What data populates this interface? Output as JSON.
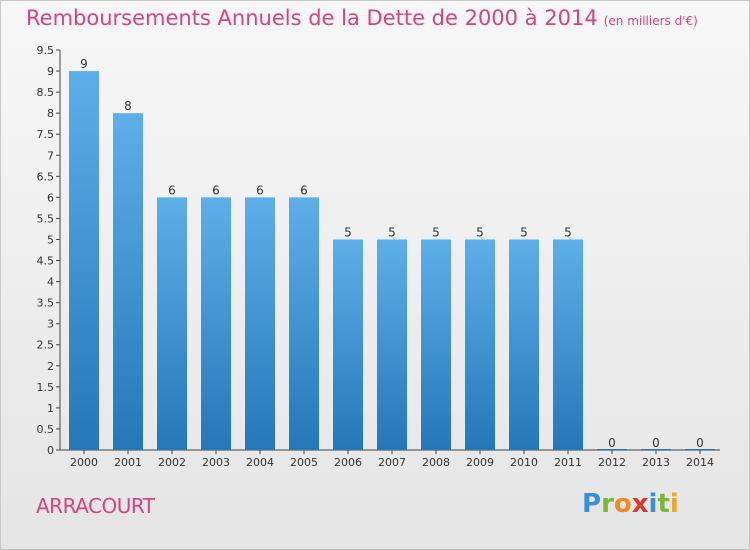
{
  "title": "Remboursements Annuels de la Dette de 2000 à 2014",
  "unit_label": "(en milliers d'€)",
  "commune": "ARRACOURT",
  "logo": [
    "P",
    "r",
    "o",
    "x",
    "i",
    "t",
    "i"
  ],
  "colors": {
    "title": "#d2457e",
    "bar_top": "#5eaeea",
    "bar_bottom": "#2577b8",
    "logo": [
      "#3a8fd6",
      "#7cb63a",
      "#f08a24",
      "#d93a2b",
      "#3a8fd6",
      "#7cb63a",
      "#f0a824"
    ]
  },
  "chart_data": {
    "type": "bar",
    "categories": [
      "2000",
      "2001",
      "2002",
      "2003",
      "2004",
      "2005",
      "2006",
      "2007",
      "2008",
      "2009",
      "2010",
      "2011",
      "2012",
      "2013",
      "2014"
    ],
    "values": [
      9,
      8,
      6,
      6,
      6,
      6,
      5,
      5,
      5,
      5,
      5,
      5,
      0,
      0,
      0
    ],
    "data_labels": [
      "9",
      "8",
      "6",
      "6",
      "6",
      "6",
      "5",
      "5",
      "5",
      "5",
      "5",
      "5",
      "0",
      "0",
      "0"
    ],
    "yticks": [
      "0",
      "0.5",
      "1",
      "1.5",
      "2",
      "2.5",
      "3",
      "3.5",
      "4",
      "4.5",
      "5",
      "5.5",
      "6",
      "6.5",
      "7",
      "7.5",
      "8",
      "8.5",
      "9",
      "9.5"
    ],
    "ylim": [
      0,
      9.5
    ],
    "grid": false,
    "title": "Remboursements Annuels de la Dette de 2000 à 2014",
    "xlabel": "",
    "ylabel": ""
  }
}
